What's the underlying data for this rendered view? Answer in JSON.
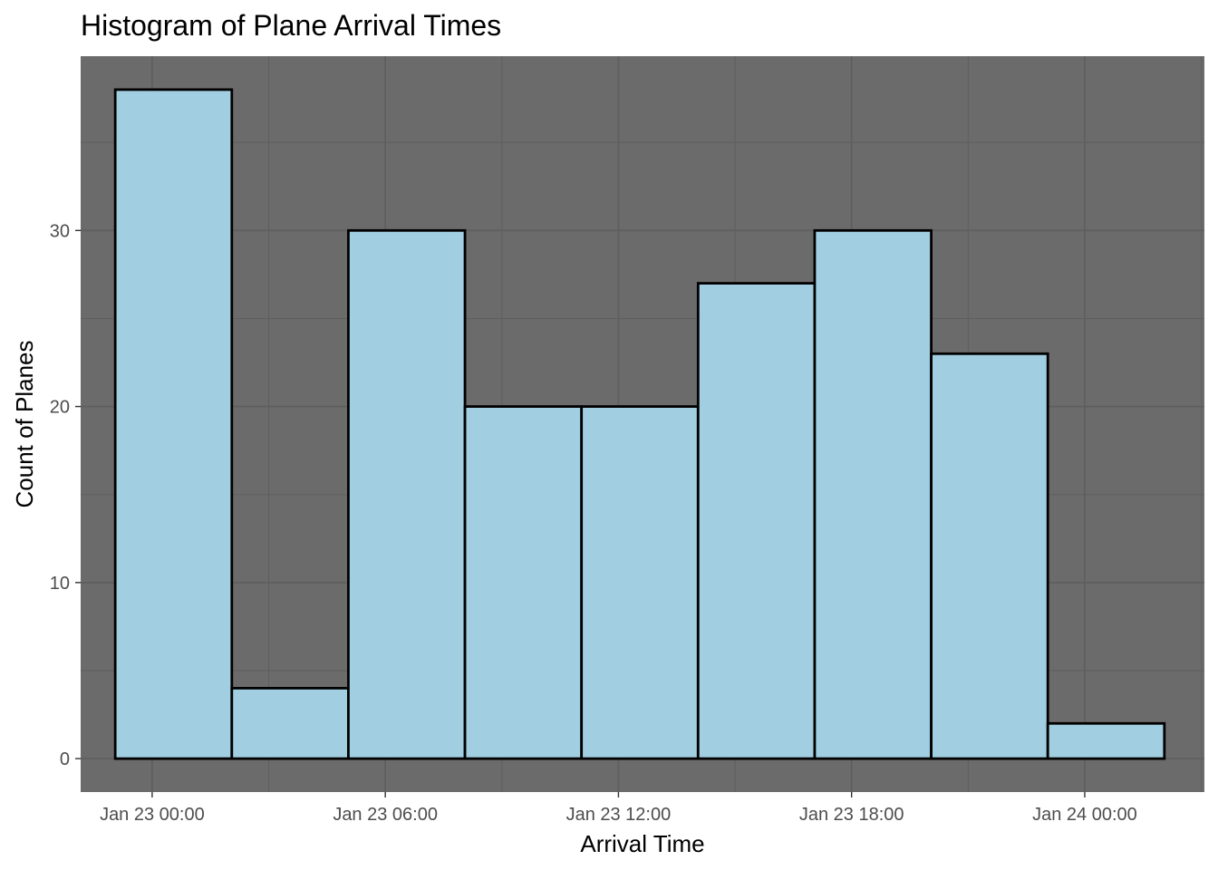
{
  "chart_data": {
    "type": "bar",
    "title": "Histogram of Plane Arrival Times",
    "xlabel": "Arrival Time",
    "ylabel": "Count of Planes",
    "x_ticks": [
      "Jan 23 00:00",
      "Jan 23 06:00",
      "Jan 23 12:00",
      "Jan 23 18:00",
      "Jan 24 00:00"
    ],
    "x_tick_hours": [
      0,
      6,
      12,
      18,
      24
    ],
    "y_ticks": [
      0,
      10,
      20,
      30
    ],
    "xlim_hours": [
      -1.84,
      27.08
    ],
    "ylim": [
      -1.9,
      39.9
    ],
    "bins": [
      {
        "start": "Jan 22 23:03",
        "end": "Jan 23 02:03",
        "count": 38
      },
      {
        "start": "Jan 23 02:03",
        "end": "Jan 23 05:03",
        "count": 4
      },
      {
        "start": "Jan 23 05:03",
        "end": "Jan 23 08:03",
        "count": 30
      },
      {
        "start": "Jan 23 08:03",
        "end": "Jan 23 11:03",
        "count": 20
      },
      {
        "start": "Jan 23 11:03",
        "end": "Jan 23 14:03",
        "count": 20
      },
      {
        "start": "Jan 23 14:03",
        "end": "Jan 23 17:03",
        "count": 27
      },
      {
        "start": "Jan 23 17:03",
        "end": "Jan 23 20:03",
        "count": 30
      },
      {
        "start": "Jan 23 20:03",
        "end": "Jan 23 23:03",
        "count": 23
      },
      {
        "start": "Jan 23 23:03",
        "end": "Jan 24 02:03",
        "count": 2
      }
    ],
    "grid": true,
    "colors": {
      "panel_background": "#6b6b6b",
      "gridline": "#5e5e5e",
      "bar_fill": "#a1cfe1",
      "bar_outline": "#000000"
    }
  }
}
